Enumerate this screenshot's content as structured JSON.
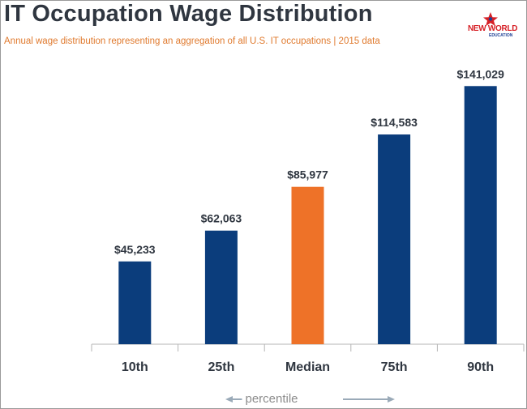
{
  "title": "IT Occupation Wage Distribution",
  "subtitle": "Annual wage distribution representing an aggregation of all U.S. IT occupations | 2015  data",
  "logo": {
    "line1": "NEW WORLD",
    "line2": "EDUCATION"
  },
  "x_axis_note": "percentile",
  "colors": {
    "primary": "#0b3d7c",
    "highlight": "#ee7228",
    "axis": "#b5b5b5",
    "arrow": "#9aaab8"
  },
  "chart_data": {
    "type": "bar",
    "categories": [
      "10th",
      "25th",
      "Median",
      "75th",
      "90th"
    ],
    "values": [
      45233,
      62063,
      85977,
      114583,
      141029
    ],
    "data_labels": [
      "$45,233",
      "$62,063",
      "$85,977",
      "$114,583",
      "$141,029"
    ],
    "highlight_category": "Median",
    "xlabel": "percentile",
    "ylabel": "",
    "ylim": [
      0,
      150000
    ],
    "grid": false
  }
}
